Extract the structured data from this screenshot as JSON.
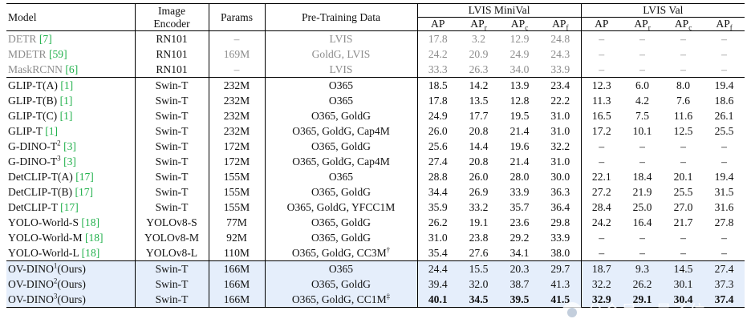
{
  "header": {
    "model": "Model",
    "image_encoder": [
      "Image",
      "Encoder"
    ],
    "params": "Params",
    "pretraining": "Pre-Training Data",
    "minival": "LVIS MiniVal",
    "val": "LVIS Val",
    "ap": "AP",
    "ap_r_sub": "r",
    "ap_c_sub": "c",
    "ap_f_sub": "f"
  },
  "groups": [
    {
      "style": "gray",
      "rows": [
        {
          "name": "DETR ",
          "ref": "[7]",
          "sup": "",
          "name_tail": "",
          "encoder": "RN101",
          "params": "–",
          "data": "LVIS",
          "data_sup": "",
          "mv": [
            "17.8",
            "3.2",
            "12.9",
            "24.8"
          ],
          "v": [
            "–",
            "–",
            "–",
            "–"
          ]
        },
        {
          "name": "MDETR ",
          "ref": "[59]",
          "sup": "",
          "name_tail": "",
          "encoder": "RN101",
          "params": "169M",
          "data": "GoldG, LVIS",
          "data_sup": "",
          "mv": [
            "24.2",
            "20.9",
            "24.9",
            "24.3"
          ],
          "v": [
            "–",
            "–",
            "–",
            "–"
          ]
        },
        {
          "name": "MaskRCNN ",
          "ref": "[6]",
          "sup": "",
          "name_tail": "",
          "encoder": "RN101",
          "params": "–",
          "data": "LVIS",
          "data_sup": "",
          "mv": [
            "33.3",
            "26.3",
            "34.0",
            "33.9"
          ],
          "v": [
            "–",
            "–",
            "–",
            "–"
          ]
        }
      ]
    },
    {
      "style": "normal",
      "rows": [
        {
          "name": "GLIP-T(A) ",
          "ref": "[1]",
          "sup": "",
          "name_tail": "",
          "encoder": "Swin-T",
          "params": "232M",
          "data": "O365",
          "data_sup": "",
          "mv": [
            "18.5",
            "14.2",
            "13.9",
            "23.4"
          ],
          "v": [
            "12.3",
            "6.0",
            "8.0",
            "19.4"
          ]
        },
        {
          "name": "GLIP-T(B) ",
          "ref": "[1]",
          "sup": "",
          "name_tail": "",
          "encoder": "Swin-T",
          "params": "232M",
          "data": "O365",
          "data_sup": "",
          "mv": [
            "17.8",
            "13.5",
            "12.8",
            "22.2"
          ],
          "v": [
            "11.3",
            "4.2",
            "7.6",
            "18.6"
          ]
        },
        {
          "name": "GLIP-T(C) ",
          "ref": "[1]",
          "sup": "",
          "name_tail": "",
          "encoder": "Swin-T",
          "params": "232M",
          "data": "O365, GoldG",
          "data_sup": "",
          "mv": [
            "24.9",
            "17.7",
            "19.5",
            "31.0"
          ],
          "v": [
            "16.5",
            "7.5",
            "11.6",
            "26.1"
          ]
        },
        {
          "name": "GLIP-T ",
          "ref": "[1]",
          "sup": "",
          "name_tail": "",
          "encoder": "Swin-T",
          "params": "232M",
          "data": "O365, GoldG, Cap4M",
          "data_sup": "",
          "mv": [
            "26.0",
            "20.8",
            "21.4",
            "31.0"
          ],
          "v": [
            "17.2",
            "10.1",
            "12.5",
            "25.5"
          ]
        },
        {
          "name": "G-DINO-T",
          "sup": "2",
          "name_tail": " ",
          "ref": "[3]",
          "encoder": "Swin-T",
          "params": "172M",
          "data": "O365, GoldG",
          "data_sup": "",
          "mv": [
            "25.6",
            "14.4",
            "19.6",
            "32.2"
          ],
          "v": [
            "–",
            "–",
            "–",
            "–"
          ]
        },
        {
          "name": "G-DINO-T",
          "sup": "3",
          "name_tail": " ",
          "ref": "[3]",
          "encoder": "Swin-T",
          "params": "172M",
          "data": "O365, GoldG, Cap4M",
          "data_sup": "",
          "mv": [
            "27.4",
            "20.8",
            "21.4",
            "31.0"
          ],
          "v": [
            "–",
            "–",
            "–",
            "–"
          ]
        },
        {
          "name": "DetCLIP-T(A) ",
          "ref": "[17]",
          "sup": "",
          "name_tail": "",
          "encoder": "Swin-T",
          "params": "155M",
          "data": "O365",
          "data_sup": "",
          "mv": [
            "28.8",
            "26.0",
            "28.0",
            "30.0"
          ],
          "v": [
            "22.1",
            "18.4",
            "20.1",
            "19.4"
          ]
        },
        {
          "name": "DetCLIP-T(B) ",
          "ref": "[17]",
          "sup": "",
          "name_tail": "",
          "encoder": "Swin-T",
          "params": "155M",
          "data": "O365, GoldG",
          "data_sup": "",
          "mv": [
            "34.4",
            "26.9",
            "33.9",
            "36.3"
          ],
          "v": [
            "27.2",
            "21.9",
            "25.5",
            "31.5"
          ]
        },
        {
          "name": "DetCLIP-T ",
          "ref": "[17]",
          "sup": "",
          "name_tail": "",
          "encoder": "Swin-T",
          "params": "155M",
          "data": "O365, GoldG, YFCC1M",
          "data_sup": "",
          "mv": [
            "35.9",
            "33.2",
            "35.7",
            "36.4"
          ],
          "v": [
            "28.4",
            "25.0",
            "27.0",
            "31.6"
          ]
        },
        {
          "name": "YOLO-World-S ",
          "ref": "[18]",
          "sup": "",
          "name_tail": "",
          "encoder": "YOLOv8-S",
          "params": "77M",
          "data": "O365, GoldG",
          "data_sup": "",
          "mv": [
            "26.2",
            "19.1",
            "23.6",
            "29.8"
          ],
          "v": [
            "24.2",
            "16.4",
            "21.7",
            "27.8"
          ]
        },
        {
          "name": "YOLO-World-M ",
          "ref": "[18]",
          "sup": "",
          "name_tail": "",
          "encoder": "YOLOv8-M",
          "params": "92M",
          "data": "O365, GoldG",
          "data_sup": "",
          "mv": [
            "31.0",
            "23.8",
            "29.2",
            "33.9"
          ],
          "v": [
            "–",
            "–",
            "–",
            "–"
          ]
        },
        {
          "name": "YOLO-World-L ",
          "ref": "[18]",
          "sup": "",
          "name_tail": "",
          "encoder": "YOLOv8-L",
          "params": "110M",
          "data": "O365, GoldG, CC3M",
          "data_sup": "†",
          "mv": [
            "35.4",
            "27.6",
            "34.1",
            "38.0"
          ],
          "v": [
            "–",
            "–",
            "–",
            "–"
          ]
        }
      ]
    },
    {
      "style": "ours",
      "rows": [
        {
          "name": "OV-DINO",
          "sup": "1",
          "name_tail": "(Ours)",
          "ref": "",
          "encoder": "Swin-T",
          "params": "166M",
          "data": "O365",
          "data_sup": "",
          "mv": [
            "24.4",
            "15.5",
            "20.3",
            "29.7"
          ],
          "v": [
            "18.7",
            "9.3",
            "14.5",
            "27.4"
          ],
          "bold": false
        },
        {
          "name": "OV-DINO",
          "sup": "2",
          "name_tail": "(Ours)",
          "ref": "",
          "encoder": "Swin-T",
          "params": "166M",
          "data": "O365, GoldG",
          "data_sup": "",
          "mv": [
            "39.4",
            "32.0",
            "38.7",
            "41.3"
          ],
          "v": [
            "32.2",
            "26.2",
            "30.1",
            "37.3"
          ],
          "bold": false
        },
        {
          "name": "OV-DINO",
          "sup": "3",
          "name_tail": "(Ours)",
          "ref": "",
          "encoder": "Swin-T",
          "params": "166M",
          "data": "O365, GoldG, CC1M",
          "data_sup": "‡",
          "mv": [
            "40.1",
            "34.5",
            "39.5",
            "41.5"
          ],
          "v": [
            "32.9",
            "29.1",
            "30.4",
            "37.4"
          ],
          "bold": true
        }
      ]
    }
  ],
  "watermark": "公众号 · 量子位"
}
